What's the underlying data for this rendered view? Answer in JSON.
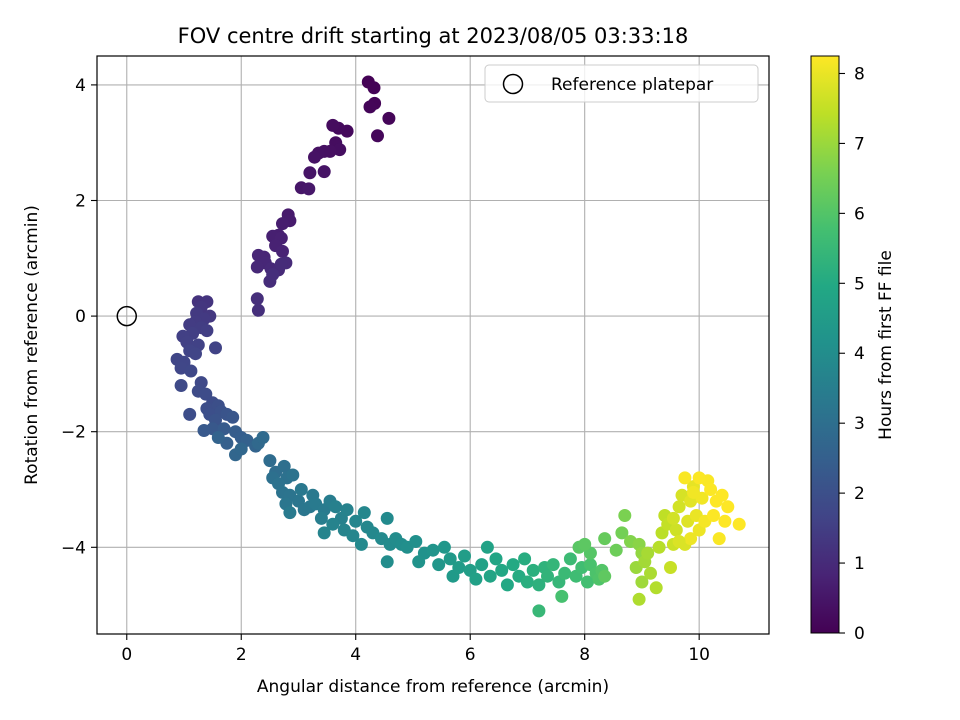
{
  "chart_data": {
    "type": "scatter",
    "title": "FOV centre drift starting at 2023/08/05 03:33:18",
    "xlabel": "Angular distance from reference (arcmin)",
    "ylabel": "Rotation from reference (arcmin)",
    "xlim": [
      -0.52,
      11.22
    ],
    "ylim": [
      -5.5,
      4.5
    ],
    "x_ticks": [
      0,
      2,
      4,
      6,
      8,
      10
    ],
    "y_ticks": [
      -4,
      -2,
      0,
      2,
      4
    ],
    "grid": true,
    "legend": {
      "placement": "top-right",
      "entries": [
        "Reference platepar"
      ]
    },
    "reference_point": {
      "x": 0,
      "y": 0,
      "label": "Reference platepar"
    },
    "colorbar": {
      "label": "Hours from first FF file",
      "colormap": "viridis",
      "range": [
        0,
        8.25
      ],
      "ticks": [
        0,
        1,
        2,
        3,
        4,
        5,
        6,
        7,
        8
      ]
    },
    "points": [
      [
        4.22,
        4.05,
        0.02
      ],
      [
        4.32,
        3.95,
        0.05
      ],
      [
        4.33,
        3.68,
        0.08
      ],
      [
        4.25,
        3.62,
        0.1
      ],
      [
        4.58,
        3.42,
        0.12
      ],
      [
        4.38,
        3.12,
        0.14
      ],
      [
        3.85,
        3.2,
        0.2
      ],
      [
        3.7,
        3.25,
        0.22
      ],
      [
        3.6,
        3.3,
        0.25
      ],
      [
        3.65,
        3.0,
        0.28
      ],
      [
        3.72,
        2.88,
        0.3
      ],
      [
        3.55,
        2.85,
        0.32
      ],
      [
        3.45,
        2.85,
        0.35
      ],
      [
        3.35,
        2.82,
        0.38
      ],
      [
        3.28,
        2.75,
        0.4
      ],
      [
        3.45,
        2.5,
        0.42
      ],
      [
        3.2,
        2.48,
        0.45
      ],
      [
        3.05,
        2.22,
        0.5
      ],
      [
        3.18,
        2.2,
        0.55
      ],
      [
        2.82,
        1.75,
        0.6
      ],
      [
        2.85,
        1.65,
        0.62
      ],
      [
        2.72,
        1.6,
        0.65
      ],
      [
        2.65,
        1.4,
        0.7
      ],
      [
        2.55,
        1.38,
        0.72
      ],
      [
        2.7,
        1.35,
        0.75
      ],
      [
        2.6,
        1.22,
        0.78
      ],
      [
        2.72,
        1.12,
        0.8
      ],
      [
        2.4,
        1.02,
        0.85
      ],
      [
        2.3,
        1.05,
        0.88
      ],
      [
        2.42,
        0.92,
        0.9
      ],
      [
        2.28,
        0.85,
        0.92
      ],
      [
        2.52,
        0.82,
        0.95
      ],
      [
        2.65,
        0.8,
        0.98
      ],
      [
        2.78,
        0.92,
        1.0
      ],
      [
        2.7,
        0.9,
        1.02
      ],
      [
        2.5,
        0.6,
        1.05
      ],
      [
        2.55,
        0.72,
        1.08
      ],
      [
        2.28,
        0.3,
        1.1
      ],
      [
        2.3,
        0.1,
        1.12
      ],
      [
        1.25,
        0.25,
        1.2
      ],
      [
        1.4,
        0.25,
        1.25
      ],
      [
        1.3,
        0.15,
        1.3
      ],
      [
        1.45,
        0.0,
        1.35
      ],
      [
        1.22,
        0.05,
        1.38
      ],
      [
        1.35,
        -0.05,
        1.4
      ],
      [
        1.2,
        -0.1,
        1.42
      ],
      [
        1.1,
        -0.15,
        1.45
      ],
      [
        1.3,
        -0.2,
        1.48
      ],
      [
        1.4,
        -0.25,
        1.5
      ],
      [
        1.15,
        -0.3,
        1.52
      ],
      [
        0.98,
        -0.35,
        1.55
      ],
      [
        1.05,
        -0.45,
        1.58
      ],
      [
        1.25,
        -0.5,
        1.6
      ],
      [
        1.55,
        -0.55,
        1.62
      ],
      [
        1.1,
        -0.6,
        1.65
      ],
      [
        1.2,
        -0.65,
        1.68
      ],
      [
        0.88,
        -0.75,
        1.7
      ],
      [
        1.0,
        -0.8,
        1.72
      ],
      [
        0.95,
        -0.9,
        1.75
      ],
      [
        1.12,
        -0.95,
        1.78
      ],
      [
        1.3,
        -1.15,
        1.8
      ],
      [
        0.95,
        -1.2,
        1.82
      ],
      [
        1.25,
        -1.3,
        1.85
      ],
      [
        1.38,
        -1.35,
        1.88
      ],
      [
        1.5,
        -1.5,
        1.9
      ],
      [
        1.1,
        -1.7,
        1.92
      ],
      [
        1.4,
        -1.6,
        1.95
      ],
      [
        1.6,
        -1.55,
        1.98
      ],
      [
        1.45,
        -1.7,
        2.0
      ],
      [
        1.65,
        -1.65,
        2.05
      ],
      [
        1.55,
        -1.8,
        2.1
      ],
      [
        1.75,
        -1.7,
        2.15
      ],
      [
        1.85,
        -1.75,
        2.2
      ],
      [
        1.5,
        -1.95,
        2.25
      ],
      [
        1.35,
        -1.98,
        2.3
      ],
      [
        1.7,
        -1.95,
        2.35
      ],
      [
        1.9,
        -2.0,
        2.4
      ],
      [
        2.0,
        -2.1,
        2.45
      ],
      [
        1.75,
        -2.2,
        2.5
      ],
      [
        2.1,
        -2.15,
        2.55
      ],
      [
        1.6,
        -2.1,
        2.6
      ],
      [
        2.25,
        -2.25,
        2.65
      ],
      [
        1.9,
        -2.4,
        2.7
      ],
      [
        2.0,
        -2.3,
        2.75
      ],
      [
        2.3,
        -2.2,
        2.8
      ],
      [
        2.38,
        -2.1,
        2.85
      ],
      [
        2.5,
        -2.5,
        2.9
      ],
      [
        2.6,
        -2.7,
        2.95
      ],
      [
        2.75,
        -2.6,
        3.0
      ],
      [
        2.55,
        -2.8,
        3.05
      ],
      [
        2.8,
        -2.8,
        3.08
      ],
      [
        2.65,
        -2.9,
        3.1
      ],
      [
        2.9,
        -2.75,
        3.12
      ],
      [
        2.72,
        -3.05,
        3.15
      ],
      [
        2.85,
        -3.1,
        3.18
      ],
      [
        3.0,
        -3.2,
        3.2
      ],
      [
        2.78,
        -3.25,
        3.22
      ],
      [
        3.1,
        -3.35,
        3.25
      ],
      [
        3.2,
        -3.3,
        3.28
      ],
      [
        3.05,
        -3.0,
        3.3
      ],
      [
        3.25,
        -3.1,
        3.32
      ],
      [
        2.85,
        -3.4,
        3.35
      ],
      [
        3.3,
        -3.25,
        3.38
      ],
      [
        3.45,
        -3.35,
        3.4
      ],
      [
        3.55,
        -3.2,
        3.45
      ],
      [
        3.4,
        -3.5,
        3.5
      ],
      [
        3.65,
        -3.3,
        3.55
      ],
      [
        3.75,
        -3.5,
        3.6
      ],
      [
        3.85,
        -3.35,
        3.62
      ],
      [
        3.6,
        -3.6,
        3.65
      ],
      [
        3.45,
        -3.75,
        3.68
      ],
      [
        3.8,
        -3.7,
        3.7
      ],
      [
        4.0,
        -3.55,
        3.72
      ],
      [
        3.95,
        -3.8,
        3.75
      ],
      [
        4.15,
        -3.4,
        3.78
      ],
      [
        4.2,
        -3.65,
        3.8
      ],
      [
        4.3,
        -3.75,
        3.82
      ],
      [
        4.1,
        -3.95,
        3.85
      ],
      [
        4.45,
        -3.85,
        3.88
      ],
      [
        4.55,
        -3.5,
        3.9
      ],
      [
        4.6,
        -3.95,
        3.92
      ],
      [
        4.7,
        -3.85,
        3.95
      ],
      [
        4.55,
        -4.25,
        3.98
      ],
      [
        4.8,
        -3.95,
        4.0
      ],
      [
        4.9,
        -4.0,
        4.05
      ],
      [
        5.05,
        -3.9,
        4.1
      ],
      [
        5.2,
        -4.1,
        4.15
      ],
      [
        5.1,
        -4.25,
        4.2
      ],
      [
        5.35,
        -4.05,
        4.25
      ],
      [
        5.45,
        -4.3,
        4.3
      ],
      [
        5.55,
        -4.0,
        4.35
      ],
      [
        5.65,
        -4.2,
        4.4
      ],
      [
        5.7,
        -4.5,
        4.45
      ],
      [
        5.8,
        -4.35,
        4.5
      ],
      [
        5.9,
        -4.15,
        4.55
      ],
      [
        6.0,
        -4.4,
        4.6
      ],
      [
        6.1,
        -4.55,
        4.65
      ],
      [
        6.2,
        -4.3,
        4.7
      ],
      [
        6.3,
        -4.0,
        4.75
      ],
      [
        6.35,
        -4.5,
        4.8
      ],
      [
        6.45,
        -4.2,
        4.85
      ],
      [
        6.55,
        -4.4,
        4.9
      ],
      [
        6.65,
        -4.65,
        4.95
      ],
      [
        6.75,
        -4.3,
        5.0
      ],
      [
        6.85,
        -4.5,
        5.05
      ],
      [
        6.95,
        -4.2,
        5.1
      ],
      [
        7.0,
        -4.6,
        5.15
      ],
      [
        7.1,
        -4.4,
        5.2
      ],
      [
        7.2,
        -4.65,
        5.25
      ],
      [
        7.3,
        -4.35,
        5.3
      ],
      [
        7.35,
        -4.5,
        5.35
      ],
      [
        7.45,
        -4.3,
        5.4
      ],
      [
        7.55,
        -4.6,
        5.45
      ],
      [
        7.2,
        -5.1,
        5.5
      ],
      [
        7.65,
        -4.45,
        5.55
      ],
      [
        7.75,
        -4.2,
        5.6
      ],
      [
        7.85,
        -4.5,
        5.65
      ],
      [
        7.95,
        -4.35,
        5.7
      ],
      [
        8.05,
        -4.6,
        5.75
      ],
      [
        7.6,
        -4.85,
        5.8
      ],
      [
        8.1,
        -4.3,
        5.85
      ],
      [
        8.2,
        -4.45,
        5.9
      ],
      [
        8.25,
        -4.55,
        5.95
      ],
      [
        8.3,
        -4.4,
        6.0
      ],
      [
        8.1,
        -4.1,
        6.05
      ],
      [
        7.9,
        -4.0,
        6.1
      ],
      [
        8.0,
        -3.95,
        6.15
      ],
      [
        8.35,
        -4.5,
        6.2
      ],
      [
        8.35,
        -3.85,
        6.3
      ],
      [
        8.55,
        -4.05,
        6.4
      ],
      [
        8.65,
        -3.75,
        6.5
      ],
      [
        8.7,
        -3.45,
        6.6
      ],
      [
        8.8,
        -3.9,
        6.7
      ],
      [
        8.95,
        -3.95,
        6.8
      ],
      [
        9.0,
        -4.1,
        6.9
      ],
      [
        8.9,
        -4.35,
        7.0
      ],
      [
        9.0,
        -4.6,
        7.05
      ],
      [
        9.05,
        -4.25,
        7.1
      ],
      [
        9.1,
        -4.1,
        7.15
      ],
      [
        9.15,
        -4.45,
        7.2
      ],
      [
        8.95,
        -4.9,
        7.25
      ],
      [
        9.25,
        -4.7,
        7.3
      ],
      [
        9.3,
        -4.0,
        7.35
      ],
      [
        9.35,
        -3.75,
        7.4
      ],
      [
        9.4,
        -3.45,
        7.45
      ],
      [
        9.45,
        -3.6,
        7.5
      ],
      [
        9.5,
        -4.35,
        7.55
      ],
      [
        9.55,
        -3.95,
        7.6
      ],
      [
        9.6,
        -3.7,
        7.65
      ],
      [
        9.65,
        -3.3,
        7.7
      ],
      [
        9.7,
        -3.1,
        7.75
      ],
      [
        9.75,
        -3.95,
        7.8
      ],
      [
        9.8,
        -3.55,
        7.85
      ],
      [
        9.85,
        -3.2,
        7.9
      ],
      [
        9.9,
        -2.95,
        7.95
      ],
      [
        9.95,
        -3.45,
        8.0
      ],
      [
        10.0,
        -3.7,
        8.05
      ],
      [
        10.05,
        -3.15,
        8.1
      ],
      [
        10.1,
        -3.55,
        8.15
      ],
      [
        10.15,
        -2.85,
        8.2
      ],
      [
        10.2,
        -3.0,
        8.22
      ],
      [
        10.25,
        -3.45,
        8.24
      ],
      [
        10.3,
        -3.2,
        8.25
      ],
      [
        10.4,
        -3.1,
        8.25
      ],
      [
        10.5,
        -3.3,
        8.25
      ],
      [
        10.45,
        -3.55,
        8.25
      ],
      [
        10.7,
        -3.6,
        8.25
      ],
      [
        10.35,
        -3.85,
        8.2
      ],
      [
        9.75,
        -2.8,
        8.2
      ],
      [
        10.0,
        -2.8,
        8.22
      ],
      [
        9.85,
        -3.85,
        8.05
      ],
      [
        9.65,
        -3.9,
        7.8
      ],
      [
        9.55,
        -3.5,
        7.7
      ],
      [
        9.9,
        -3.05,
        8.1
      ]
    ]
  }
}
